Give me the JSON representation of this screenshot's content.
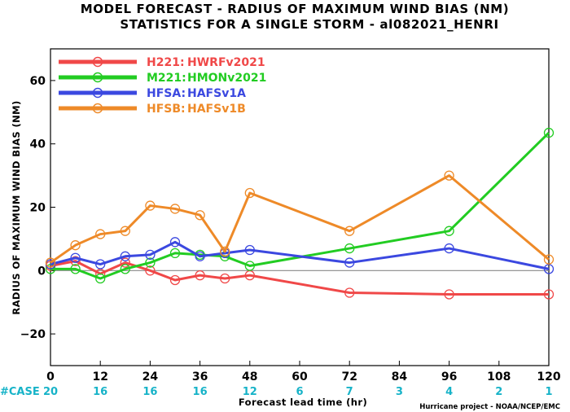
{
  "chart_data": {
    "type": "line",
    "title": "MODEL FORECAST - RADIUS OF MAXIMUM WIND BIAS (NM)",
    "subtitle": "STATISTICS FOR A SINGLE STORM - al082021_HENRI",
    "xlabel": "Forecast lead time (hr)",
    "ylabel": "RADIUS OF MAXIMUM WIND BIAS (NM)",
    "xlim": [
      0,
      120
    ],
    "ylim": [
      -30,
      70
    ],
    "xticks": [
      0,
      12,
      24,
      36,
      48,
      60,
      72,
      84,
      96,
      108,
      120
    ],
    "yticks": [
      -20,
      0,
      20,
      40,
      60
    ],
    "grid": false,
    "zero_line": true,
    "legend_position": "top-left",
    "case_label": "#CASE",
    "cases": [
      {
        "x": 0,
        "n": "20"
      },
      {
        "x": 12,
        "n": "16"
      },
      {
        "x": 24,
        "n": "16"
      },
      {
        "x": 36,
        "n": "16"
      },
      {
        "x": 48,
        "n": "12"
      },
      {
        "x": 60,
        "n": "6"
      },
      {
        "x": 72,
        "n": "7"
      },
      {
        "x": 84,
        "n": "3"
      },
      {
        "x": 96,
        "n": "4"
      },
      {
        "x": 108,
        "n": "2"
      },
      {
        "x": 120,
        "n": "1"
      }
    ],
    "credit": "Hurricane project - NOAA/NCEP/EMC",
    "series": [
      {
        "name": "H221:",
        "desc": "HWRFv2021",
        "color": "#f04848",
        "x": [
          0,
          6,
          12,
          18,
          24,
          30,
          36,
          42,
          48,
          72,
          96,
          120
        ],
        "y": [
          1.5,
          3,
          -1,
          2.5,
          0,
          -3,
          -1.5,
          -2.5,
          -1.5,
          -7,
          -7.5,
          -7.5
        ]
      },
      {
        "name": "M221:",
        "desc": "HMONv2021",
        "color": "#22cc22",
        "x": [
          0,
          6,
          12,
          18,
          24,
          30,
          36,
          42,
          48,
          72,
          96,
          120
        ],
        "y": [
          0.5,
          0.5,
          -2.5,
          0.5,
          2.5,
          5.5,
          5,
          4.5,
          1.5,
          7,
          12.5,
          43.5
        ]
      },
      {
        "name": "HFSA:",
        "desc": "HAFSv1A",
        "color": "#3b48e0",
        "x": [
          0,
          6,
          12,
          18,
          24,
          30,
          36,
          42,
          48,
          72,
          96,
          120
        ],
        "y": [
          2,
          4,
          2,
          4.5,
          5,
          9,
          4.5,
          5.5,
          6.5,
          2.5,
          7,
          0.5
        ]
      },
      {
        "name": "HFSB:",
        "desc": "HAFSv1B",
        "color": "#ee8a28",
        "x": [
          0,
          6,
          12,
          18,
          24,
          30,
          36,
          42,
          48,
          72,
          96,
          120
        ],
        "y": [
          2.5,
          8,
          11.5,
          12.5,
          20.5,
          19.5,
          17.5,
          6,
          24.5,
          12.5,
          30,
          3.5
        ]
      }
    ]
  }
}
